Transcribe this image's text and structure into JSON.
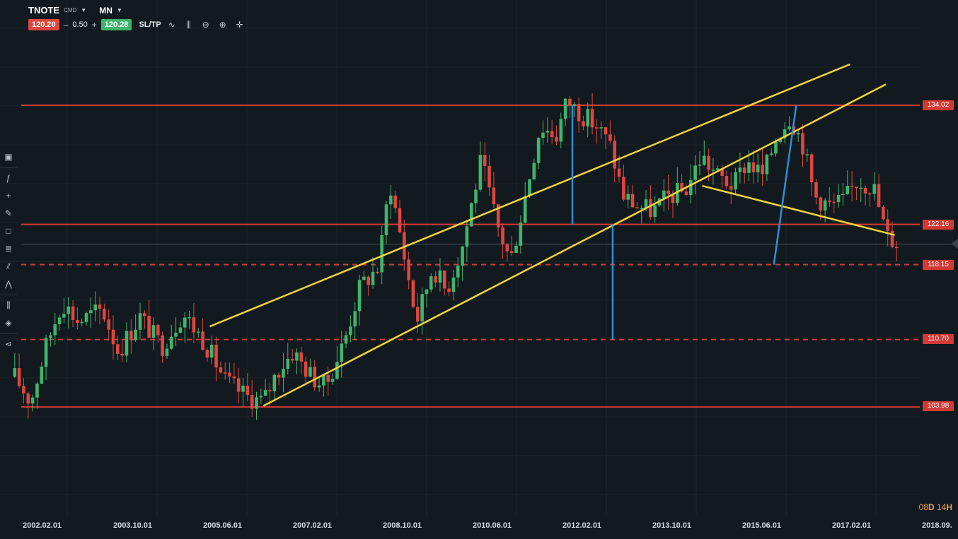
{
  "header": {
    "symbol": "TNOTE",
    "symbol_type": "CMD",
    "timeframe": "MN"
  },
  "trade_panel": {
    "sell_price": "120.20",
    "minus": "–",
    "lot_size": "0.50",
    "plus": "+",
    "buy_price": "120.28",
    "sltp_label": "SL/TP"
  },
  "toolbar_icons": [
    "line-chart-icon",
    "candles-icon",
    "zoom-out-icon",
    "zoom-in-icon",
    "crosshair-icon"
  ],
  "sidebar_icons": [
    "screen-icon",
    "indicator-fx-icon",
    "cross-icon",
    "pencil-icon",
    "rectangle-icon",
    "fib-icon",
    "trend-lines-icon",
    "patterns-icon",
    "candles-type-icon",
    "layers-icon",
    "share-icon"
  ],
  "timer": {
    "days": "08",
    "d": "D",
    "hours": "14",
    "h": "H"
  },
  "colors": {
    "background": "#131a1f",
    "bull": "#3fb56c",
    "bear": "#e0463f",
    "level": "#d23a35",
    "channel": "#f2d538",
    "measure": "#2f8fd6"
  },
  "chart_data": {
    "type": "candlestick",
    "instrument": "TNOTE",
    "timeframe": "MN",
    "x_ticks": [
      "2002.02.01",
      "2003.10.01",
      "2005.06.01",
      "2007.02.01",
      "2008.10.01",
      "2010.06.01",
      "2012.02.01",
      "2013.10.01",
      "2015.06.01",
      "2017.02.01",
      "2018.09."
    ],
    "ylim": [
      94.0,
      140.0
    ],
    "last_price": 120.2,
    "price_levels": [
      {
        "label": "134.02",
        "value": 134.02,
        "style": "solid"
      },
      {
        "label": "122.16",
        "value": 122.16,
        "style": "solid"
      },
      {
        "label": "118.15",
        "value": 118.15,
        "style": "dashed"
      },
      {
        "label": "110.70",
        "value": 110.7,
        "style": "dashed"
      },
      {
        "label": "103.98",
        "value": 103.98,
        "style": "solid"
      }
    ],
    "trend_lines": [
      {
        "from": [
          "2005.07",
          112.0
        ],
        "to": [
          "2017.06",
          138.1
        ]
      },
      {
        "from": [
          "2006.07",
          104.1
        ],
        "to": [
          "2018.02",
          136.1
        ]
      },
      {
        "from": [
          "2014.09",
          126.0
        ],
        "to": [
          "2018.04",
          121.1
        ]
      }
    ],
    "measure_lines": [
      {
        "x": "2012.04",
        "from": 122.16,
        "to": 134.02
      },
      {
        "x": "2013.01",
        "from": 110.7,
        "to": 122.16
      },
      {
        "from": [
          "2016.01",
          118.15
        ],
        "to": [
          "2016.06",
          134.02
        ]
      }
    ],
    "candles_close_path": [
      [
        2001.87,
        107.0
      ],
      [
        2002.17,
        104.5
      ],
      [
        2002.45,
        110.0
      ],
      [
        2002.75,
        114.5
      ],
      [
        2003.05,
        112.5
      ],
      [
        2003.5,
        113.7
      ],
      [
        2003.8,
        109.5
      ],
      [
        2004.2,
        113.0
      ],
      [
        2004.6,
        110.0
      ],
      [
        2005.0,
        113.3
      ],
      [
        2005.4,
        110.5
      ],
      [
        2005.8,
        106.5
      ],
      [
        2006.2,
        105.0
      ],
      [
        2006.5,
        104.5
      ],
      [
        2006.75,
        107.5
      ],
      [
        2007.05,
        109.5
      ],
      [
        2007.4,
        107.0
      ],
      [
        2007.65,
        106.0
      ],
      [
        2008.0,
        110.5
      ],
      [
        2008.3,
        116.0
      ],
      [
        2008.65,
        118.0
      ],
      [
        2008.85,
        126.5
      ],
      [
        2009.05,
        121.0
      ],
      [
        2009.35,
        112.5
      ],
      [
        2009.65,
        118.0
      ],
      [
        2009.9,
        115.5
      ],
      [
        2010.2,
        120.0
      ],
      [
        2010.55,
        128.5
      ],
      [
        2010.85,
        122.0
      ],
      [
        2011.1,
        118.5
      ],
      [
        2011.35,
        124.5
      ],
      [
        2011.65,
        132.0
      ],
      [
        2011.95,
        131.0
      ],
      [
        2012.15,
        134.5
      ],
      [
        2012.45,
        133.0
      ],
      [
        2012.7,
        132.0
      ],
      [
        2012.95,
        130.0
      ],
      [
        2013.2,
        125.0
      ],
      [
        2013.45,
        124.0
      ],
      [
        2013.75,
        123.5
      ],
      [
        2014.05,
        125.0
      ],
      [
        2014.35,
        125.5
      ],
      [
        2014.65,
        129.0
      ],
      [
        2014.95,
        127.0
      ],
      [
        2015.25,
        126.0
      ],
      [
        2015.5,
        128.5
      ],
      [
        2015.8,
        127.0
      ],
      [
        2016.05,
        131.0
      ],
      [
        2016.3,
        133.0
      ],
      [
        2016.55,
        130.0
      ],
      [
        2016.75,
        125.0
      ],
      [
        2017.05,
        124.0
      ],
      [
        2017.3,
        124.5
      ],
      [
        2017.55,
        126.5
      ],
      [
        2017.85,
        126.0
      ],
      [
        2018.1,
        121.0
      ],
      [
        2018.35,
        120.2
      ]
    ]
  }
}
